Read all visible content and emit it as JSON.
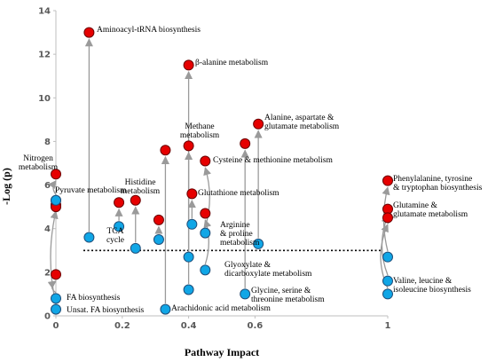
{
  "chart_data": {
    "type": "scatter",
    "xlabel": "Pathway Impact",
    "ylabel": "-Log (p)",
    "xlim": [
      0,
      1
    ],
    "ylim": [
      0,
      14
    ],
    "x_ticks": [
      {
        "value": 0,
        "label": "0"
      },
      {
        "value": 0.2,
        "label": "0.2"
      },
      {
        "value": 0.4,
        "label": "0.4"
      },
      {
        "value": 0.6,
        "label": "0.6"
      },
      {
        "value": 1,
        "label": "1"
      }
    ],
    "y_ticks": [
      {
        "value": 0,
        "label": "0"
      },
      {
        "value": 2,
        "label": "2"
      },
      {
        "value": 4,
        "label": "4"
      },
      {
        "value": 6,
        "label": "6"
      },
      {
        "value": 8,
        "label": "8"
      },
      {
        "value": 10,
        "label": "10"
      },
      {
        "value": 12,
        "label": "12"
      },
      {
        "value": 14,
        "label": "14"
      }
    ],
    "threshold": {
      "y": 3.0,
      "style": "dotted"
    },
    "colors": {
      "blue": "#10a6e6",
      "red": "#e60000",
      "arrow": "#9a9a9a"
    },
    "pathways": [
      {
        "label": "FA biosynthesis",
        "x": 0.0,
        "y_blue": 0.8,
        "y_red": 1.9
      },
      {
        "label": "Unsat. FA biosynthesis",
        "x": 0.0,
        "y_blue": 0.3,
        "y_red": 5.1
      },
      {
        "label": "Pyruvate metabolism",
        "x": 0.0,
        "y_blue": 5.3,
        "y_red": 5.0
      },
      {
        "label": "Nitrogen metabolism",
        "x": 0.0,
        "y_blue": 5.3,
        "y_red": 6.5
      },
      {
        "label": "Aminoacyl-tRNA biosynthesis",
        "x": 0.1,
        "y_blue": 3.6,
        "y_red": 13.0
      },
      {
        "label": "TCA cycle",
        "x": 0.19,
        "y_blue": 4.1,
        "y_red": 5.2
      },
      {
        "label": "Histidine metabolism",
        "x": 0.24,
        "y_blue": 3.1,
        "y_red": 5.3
      },
      {
        "label": "Arginine & proline metabolism",
        "x": 0.31,
        "y_blue": 3.5,
        "y_red": 4.4
      },
      {
        "label": "Arachidonic acid metabolism",
        "x": 0.33,
        "y_blue": 0.3,
        "y_red": 7.6
      },
      {
        "label": "β-alanine metabolism",
        "x": 0.4,
        "y_blue": 1.2,
        "y_red": 11.5
      },
      {
        "label": "Methane metabolism",
        "x": 0.4,
        "y_blue": 2.7,
        "y_red": 7.8
      },
      {
        "label": "Glutathione metabolism",
        "x": 0.41,
        "y_blue": 4.2,
        "y_red": 5.6
      },
      {
        "label": "Cysteine & methionine metabolism",
        "x": 0.45,
        "y_blue": 3.8,
        "y_red": 7.1
      },
      {
        "label": "Glyoxylate & dicarboxylate metabolism",
        "x": 0.45,
        "y_blue": 2.1,
        "y_red": 4.7
      },
      {
        "label": "Glycine, serine & threonine metabolism",
        "x": 0.57,
        "y_blue": 1.0,
        "y_red": 7.9
      },
      {
        "label": "Alanine, aspartate & glutamate metabolism",
        "x": 0.61,
        "y_blue": 3.3,
        "y_red": 8.8
      },
      {
        "label": "Phenylalanine, tyrosine & tryptophan biosynthesis",
        "x": 1.0,
        "y_blue": 2.7,
        "y_red": 6.2
      },
      {
        "label": "Glutamine & glutamate metabolism",
        "x": 1.0,
        "y_blue": 1.6,
        "y_red": 4.9
      },
      {
        "label": "Valine, leucine & isoleucine biosynthesis",
        "x": 1.0,
        "y_blue": 1.0,
        "y_red": 4.5
      }
    ],
    "annotations": [
      {
        "lines": [
          "Aminoacyl-tRNA biosynthesis"
        ]
      },
      {
        "lines": [
          "β-alanine metabolism"
        ]
      },
      {
        "lines": [
          "Nitrogen",
          "metabolism"
        ]
      },
      {
        "lines": [
          "Pyruvate metabolism"
        ]
      },
      {
        "lines": [
          "FA biosynthesis"
        ]
      },
      {
        "lines": [
          "Unsat. FA biosynthesis"
        ]
      },
      {
        "lines": [
          "Histidine",
          "metabolism"
        ]
      },
      {
        "lines": [
          "TCA",
          "cycle"
        ]
      },
      {
        "lines": [
          "Arginine",
          "& proline",
          "metabolism"
        ]
      },
      {
        "lines": [
          "Methane",
          "metabolism"
        ]
      },
      {
        "lines": [
          "Alanine, aspartate &",
          "glutamate metabolism"
        ]
      },
      {
        "lines": [
          "Cysteine & methionine metabolism"
        ]
      },
      {
        "lines": [
          "Glutathione metabolism"
        ]
      },
      {
        "lines": [
          "Glyoxylate &",
          "dicarboxylate metabolism"
        ]
      },
      {
        "lines": [
          "Glycine, serine &",
          "threonine metabolism"
        ]
      },
      {
        "lines": [
          "Arachidonic acid metabolism"
        ]
      },
      {
        "lines": [
          "Phenylalanine, tyrosine",
          "& tryptophan biosynthesis"
        ]
      },
      {
        "lines": [
          "Glutamine &",
          "glutamate metabolism"
        ]
      },
      {
        "lines": [
          "Valine, leucine &",
          "isoleucine biosynthesis"
        ]
      }
    ]
  }
}
